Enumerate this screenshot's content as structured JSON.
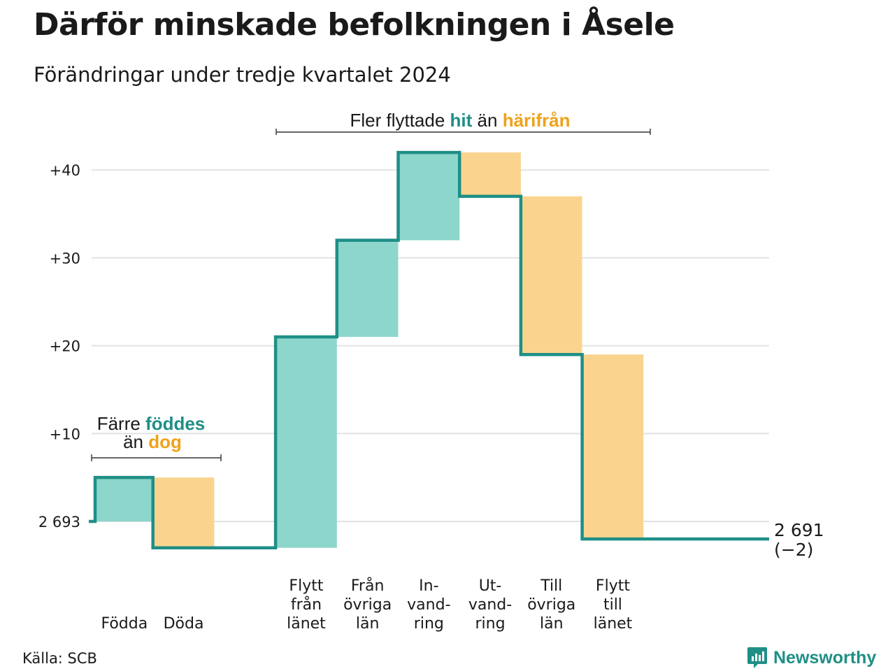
{
  "title": "Därför minskade befolkningen i Åsele",
  "subtitle": "Förändringar under tredje kvartalet 2024",
  "source": "Källa: SCB",
  "logo_text": "Newsworthy",
  "colors": {
    "increase": "#8dd6cc",
    "decrease": "#fad48e",
    "line": "#1f8f86",
    "accent_orange": "#efa21a",
    "grid": "#e3e3e3"
  },
  "annotations": {
    "births": {
      "line1_pre": "Färre ",
      "line1_accent": "föddes",
      "line2_pre": "än ",
      "line2_accent": "dog"
    },
    "migration": {
      "pre": "Fler flyttade ",
      "accent1": "hit",
      "mid": " än ",
      "accent2": "härifrån"
    }
  },
  "chart_data": {
    "type": "waterfall",
    "start_label": "2 693",
    "start_value": 2693,
    "end_label": "2 691",
    "end_change_label": "(−2)",
    "end_value": 2691,
    "yticks": [
      {
        "value": 10,
        "label": "+10"
      },
      {
        "value": 20,
        "label": "+20"
      },
      {
        "value": 30,
        "label": "+30"
      },
      {
        "value": 40,
        "label": "+40"
      }
    ],
    "ylim": [
      -3,
      44
    ],
    "steps": [
      {
        "category": [
          "Födda"
        ],
        "change": 5,
        "kind": "increase"
      },
      {
        "category": [
          "Döda"
        ],
        "change": -8,
        "kind": "decrease"
      },
      {
        "category": [],
        "change": 0,
        "kind": "gap"
      },
      {
        "category": [
          "Flytt",
          "från",
          "länet"
        ],
        "change": 24,
        "kind": "increase"
      },
      {
        "category": [
          "Från",
          "övriga",
          "län"
        ],
        "change": 11,
        "kind": "increase"
      },
      {
        "category": [
          "In-",
          "vand-",
          "ring"
        ],
        "change": 10,
        "kind": "increase"
      },
      {
        "category": [
          "Ut-",
          "vand-",
          "ring"
        ],
        "change": -5,
        "kind": "decrease"
      },
      {
        "category": [
          "Till",
          "övriga",
          "län"
        ],
        "change": -18,
        "kind": "decrease"
      },
      {
        "category": [
          "Flytt",
          "till",
          "länet"
        ],
        "change": -21,
        "kind": "decrease"
      }
    ]
  }
}
